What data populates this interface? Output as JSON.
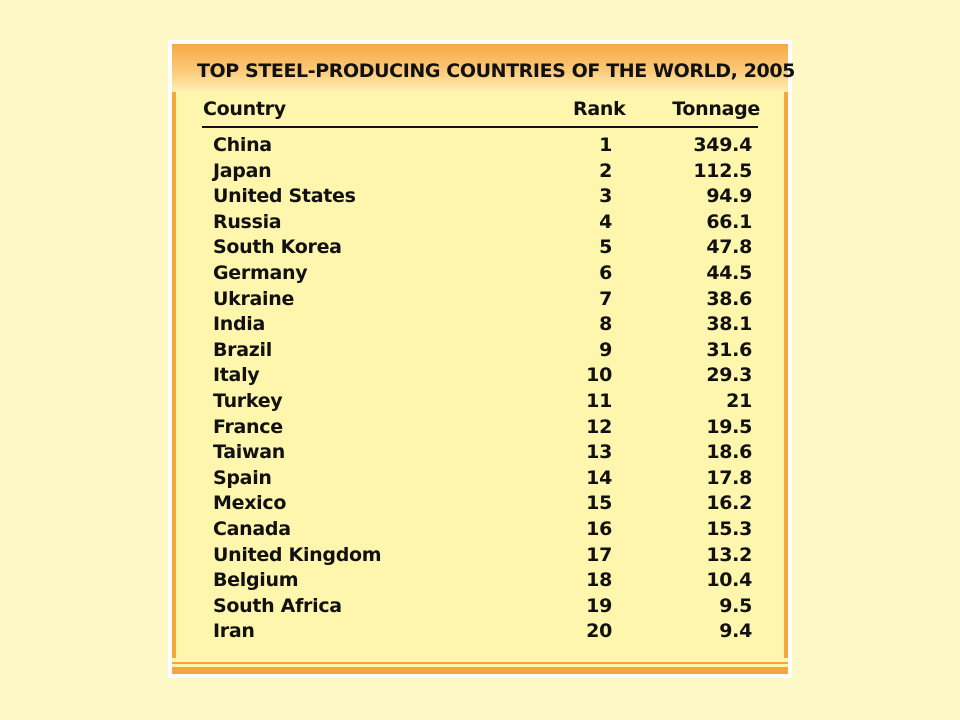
{
  "title": "TOP STEEL-PRODUCING COUNTRIES OF THE WORLD, 2005",
  "columns": {
    "country": "Country",
    "rank": "Rank",
    "tonnage": "Tonnage"
  },
  "rows": [
    {
      "country": "China",
      "rank": "1",
      "tonnage": "349.4"
    },
    {
      "country": "Japan",
      "rank": "2",
      "tonnage": "112.5"
    },
    {
      "country": "United States",
      "rank": "3",
      "tonnage": "94.9"
    },
    {
      "country": "Russia",
      "rank": "4",
      "tonnage": "66.1"
    },
    {
      "country": "South Korea",
      "rank": "5",
      "tonnage": "47.8"
    },
    {
      "country": "Germany",
      "rank": "6",
      "tonnage": "44.5"
    },
    {
      "country": "Ukraine",
      "rank": "7",
      "tonnage": "38.6"
    },
    {
      "country": "India",
      "rank": "8",
      "tonnage": "38.1"
    },
    {
      "country": "Brazil",
      "rank": "9",
      "tonnage": "31.6"
    },
    {
      "country": "Italy",
      "rank": "10",
      "tonnage": "29.3"
    },
    {
      "country": "Turkey",
      "rank": "11",
      "tonnage": "21"
    },
    {
      "country": "France",
      "rank": "12",
      "tonnage": "19.5"
    },
    {
      "country": "Taiwan",
      "rank": "13",
      "tonnage": "18.6"
    },
    {
      "country": "Spain",
      "rank": "14",
      "tonnage": "17.8"
    },
    {
      "country": "Mexico",
      "rank": "15",
      "tonnage": "16.2"
    },
    {
      "country": "Canada",
      "rank": "16",
      "tonnage": "15.3"
    },
    {
      "country": "United Kingdom",
      "rank": "17",
      "tonnage": "13.2"
    },
    {
      "country": "Belgium",
      "rank": "18",
      "tonnage": "10.4"
    },
    {
      "country": "South Africa",
      "rank": "19",
      "tonnage": "9.5"
    },
    {
      "country": "Iran",
      "rank": "20",
      "tonnage": "9.4"
    }
  ],
  "colors": {
    "background": "#fdf8c6",
    "panel": "#fff6ae",
    "accent": "#f5a73c",
    "text": "#111111"
  }
}
